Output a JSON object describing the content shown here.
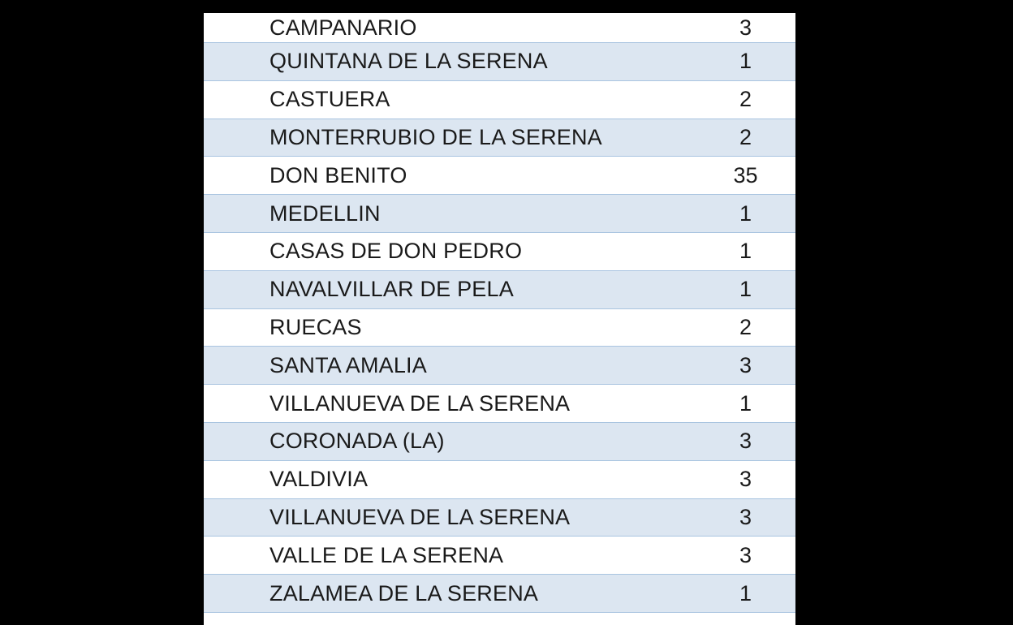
{
  "table": {
    "rows": [
      {
        "name": "CAMPANARIO",
        "count": "3"
      },
      {
        "name": "QUINTANA DE LA SERENA",
        "count": "1"
      },
      {
        "name": "CASTUERA",
        "count": "2"
      },
      {
        "name": "MONTERRUBIO DE LA SERENA",
        "count": "2"
      },
      {
        "name": "DON BENITO",
        "count": "35"
      },
      {
        "name": "MEDELLIN",
        "count": "1"
      },
      {
        "name": "CASAS DE DON PEDRO",
        "count": "1"
      },
      {
        "name": "NAVALVILLAR DE PELA",
        "count": "1"
      },
      {
        "name": "RUECAS",
        "count": "2"
      },
      {
        "name": "SANTA AMALIA",
        "count": "3"
      },
      {
        "name": "VILLANUEVA DE LA SERENA",
        "count": "1"
      },
      {
        "name": "CORONADA (LA)",
        "count": "3"
      },
      {
        "name": "VALDIVIA",
        "count": "3"
      },
      {
        "name": "VILLANUEVA DE LA SERENA",
        "count": "3"
      },
      {
        "name": "VALLE DE LA SERENA",
        "count": "3"
      },
      {
        "name": "ZALAMEA DE LA SERENA",
        "count": "1"
      }
    ]
  },
  "colors": {
    "row_alt": "#dce6f1",
    "row_border": "#a9c4e0",
    "background": "#000000"
  }
}
